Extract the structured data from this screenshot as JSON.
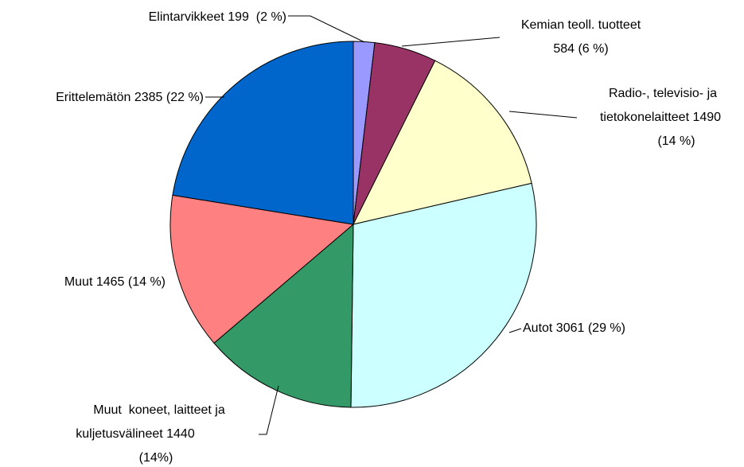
{
  "chart_data": {
    "type": "pie",
    "values": [
      199,
      584,
      1490,
      3061,
      1440,
      1465,
      2385
    ],
    "value_labels": [
      [
        "Elintarvikkeet 199  (2 %)"
      ],
      [
        "Kemian teoll. tuotteet",
        "584 (6 %)"
      ],
      [
        "Radio-, televisio- ja",
        "tietokonelaitteet 1490",
        "(14 %)"
      ],
      [
        "Autot 3061 (29 %)"
      ],
      [
        "Muut  koneet, laitteet ja",
        "kuljetusvälineet 1440",
        "(14%)"
      ],
      [
        "Muut 1465 (14 %)"
      ],
      [
        "Erittelemätön 2385 (22 %)"
      ]
    ],
    "colors": [
      "#9999ff",
      "#993366",
      "#ffffcc",
      "#ccffff",
      "#339966",
      "#ff8080",
      "#0066cc"
    ]
  }
}
